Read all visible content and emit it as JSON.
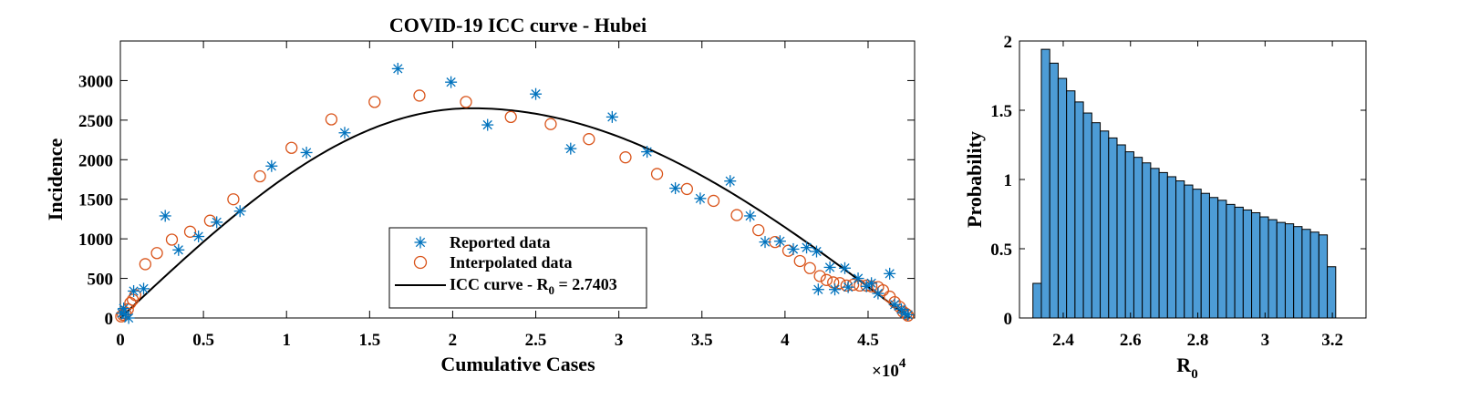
{
  "chart_data": [
    {
      "type": "scatter",
      "title": "COVID-19 ICC curve - Hubei",
      "xlabel": "Cumulative Cases",
      "ylabel": "Incidence",
      "x_multiplier_label": "×10",
      "x_multiplier_exponent": "4",
      "xlim": [
        0,
        47800
      ],
      "ylim": [
        0,
        3500
      ],
      "xticks": [
        0,
        5000,
        10000,
        15000,
        20000,
        25000,
        30000,
        35000,
        40000,
        45000
      ],
      "xtick_labels": [
        "0",
        "0.5",
        "1",
        "1.5",
        "2",
        "2.5",
        "3",
        "3.5",
        "4",
        "4.5"
      ],
      "yticks": [
        0,
        500,
        1000,
        1500,
        2000,
        2500,
        3000
      ],
      "ytick_labels": [
        "0",
        "500",
        "1000",
        "1500",
        "2000",
        "2500",
        "3000"
      ],
      "legend_position": "lower-center",
      "series": [
        {
          "name": "Reported data",
          "marker": "asterisk",
          "color": "#0072BD",
          "points": [
            [
              100,
              60
            ],
            [
              200,
              120
            ],
            [
              300,
              40
            ],
            [
              500,
              0
            ],
            [
              800,
              340
            ],
            [
              1400,
              370
            ],
            [
              2700,
              1290
            ],
            [
              3500,
              860
            ],
            [
              4700,
              1030
            ],
            [
              5800,
              1210
            ],
            [
              7200,
              1350
            ],
            [
              9100,
              1920
            ],
            [
              11200,
              2090
            ],
            [
              13500,
              2340
            ],
            [
              16700,
              3150
            ],
            [
              19900,
              2980
            ],
            [
              22100,
              2440
            ],
            [
              25000,
              2830
            ],
            [
              27100,
              2140
            ],
            [
              29600,
              2540
            ],
            [
              31700,
              2100
            ],
            [
              33400,
              1640
            ],
            [
              34900,
              1510
            ],
            [
              36700,
              1730
            ],
            [
              37900,
              1290
            ],
            [
              38800,
              960
            ],
            [
              39700,
              970
            ],
            [
              40500,
              870
            ],
            [
              41300,
              890
            ],
            [
              41900,
              840
            ],
            [
              42000,
              360
            ],
            [
              42700,
              640
            ],
            [
              43000,
              360
            ],
            [
              43600,
              630
            ],
            [
              43800,
              390
            ],
            [
              44400,
              500
            ],
            [
              44900,
              400
            ],
            [
              45200,
              440
            ],
            [
              45600,
              310
            ],
            [
              46300,
              560
            ],
            [
              46600,
              170
            ],
            [
              47000,
              110
            ],
            [
              47200,
              60
            ],
            [
              47400,
              40
            ]
          ]
        },
        {
          "name": "Interpolated data",
          "marker": "circle",
          "color": "#D95319",
          "points": [
            [
              50,
              20
            ],
            [
              150,
              40
            ],
            [
              300,
              60
            ],
            [
              450,
              110
            ],
            [
              600,
              190
            ],
            [
              750,
              230
            ],
            [
              900,
              290
            ],
            [
              1500,
              680
            ],
            [
              2200,
              820
            ],
            [
              3100,
              990
            ],
            [
              4200,
              1090
            ],
            [
              5400,
              1230
            ],
            [
              6800,
              1500
            ],
            [
              8400,
              1790
            ],
            [
              10300,
              2150
            ],
            [
              12700,
              2510
            ],
            [
              15300,
              2730
            ],
            [
              18000,
              2810
            ],
            [
              20800,
              2730
            ],
            [
              23500,
              2540
            ],
            [
              25900,
              2450
            ],
            [
              28200,
              2260
            ],
            [
              30400,
              2030
            ],
            [
              32300,
              1820
            ],
            [
              34100,
              1630
            ],
            [
              35700,
              1480
            ],
            [
              37100,
              1300
            ],
            [
              38400,
              1110
            ],
            [
              39400,
              960
            ],
            [
              40200,
              850
            ],
            [
              40900,
              720
            ],
            [
              41500,
              630
            ],
            [
              42100,
              530
            ],
            [
              42500,
              480
            ],
            [
              42900,
              450
            ],
            [
              43300,
              440
            ],
            [
              43700,
              410
            ],
            [
              44100,
              420
            ],
            [
              44500,
              410
            ],
            [
              44900,
              410
            ],
            [
              45200,
              400
            ],
            [
              45600,
              390
            ],
            [
              45900,
              350
            ],
            [
              46300,
              270
            ],
            [
              46600,
              200
            ],
            [
              46900,
              140
            ],
            [
              47100,
              80
            ],
            [
              47300,
              50
            ],
            [
              47400,
              30
            ]
          ]
        },
        {
          "name": "ICC curve - R",
          "name_subscript": "0",
          "name_suffix": " = 2.7403",
          "marker": "line",
          "color": "#000000",
          "r0": 2.7403,
          "peak_x": 21150,
          "peak_y": 2650,
          "end_x": 47500
        }
      ]
    },
    {
      "type": "bar",
      "subtype": "histogram",
      "xlabel": "R",
      "xlabel_subscript": "0",
      "ylabel": "Probability",
      "color": "#4D9CD6",
      "xlim": [
        2.27,
        3.3
      ],
      "ylim": [
        0,
        2
      ],
      "xticks": [
        2.4,
        2.6,
        2.8,
        3,
        3.2
      ],
      "xtick_labels": [
        "2.4",
        "2.6",
        "2.8",
        "3",
        "3.2"
      ],
      "yticks": [
        0,
        0.5,
        1,
        1.5,
        2
      ],
      "ytick_labels": [
        "0",
        "0.5",
        "1",
        "1.5",
        "2"
      ],
      "bin_start": 2.31,
      "bin_width": 0.025,
      "values": [
        0.25,
        1.94,
        1.84,
        1.73,
        1.64,
        1.56,
        1.48,
        1.41,
        1.35,
        1.3,
        1.25,
        1.2,
        1.16,
        1.12,
        1.08,
        1.05,
        1.02,
        0.99,
        0.96,
        0.93,
        0.9,
        0.87,
        0.85,
        0.82,
        0.8,
        0.78,
        0.76,
        0.73,
        0.71,
        0.69,
        0.68,
        0.66,
        0.64,
        0.62,
        0.6,
        0.37
      ]
    }
  ]
}
